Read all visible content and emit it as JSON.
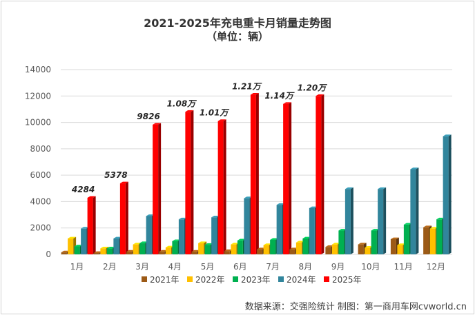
{
  "chart_data": {
    "type": "bar",
    "title": "2021-2025年充电重卡月销量走势图",
    "subtitle": "（单位：辆）",
    "categories": [
      "1月",
      "2月",
      "3月",
      "4月",
      "5月",
      "6月",
      "7月",
      "8月",
      "9月",
      "10月",
      "11月",
      "12月"
    ],
    "ylim": [
      0,
      14000
    ],
    "yticks": [
      "0",
      "2000",
      "4000",
      "6000",
      "8000",
      "10000",
      "12000",
      "14000"
    ],
    "grid": true,
    "legend_position": "bottom",
    "series": [
      {
        "name": "2021年",
        "color": "#9c5a16",
        "values": [
          150,
          100,
          200,
          200,
          200,
          250,
          380,
          380,
          560,
          750,
          1150,
          2050
        ]
      },
      {
        "name": "2022年",
        "color": "#ffc000",
        "values": [
          1200,
          450,
          750,
          520,
          850,
          750,
          700,
          900,
          750,
          500,
          700,
          1950
        ]
      },
      {
        "name": "2023年",
        "color": "#00b050",
        "values": [
          600,
          450,
          850,
          1000,
          720,
          1050,
          1100,
          1200,
          1800,
          1800,
          2250,
          2650
        ]
      },
      {
        "name": "2024年",
        "color": "#31859c",
        "values": [
          1950,
          1200,
          2900,
          2650,
          2800,
          4250,
          3750,
          3500,
          4950,
          4950,
          6450,
          8950
        ]
      },
      {
        "name": "2025年",
        "color": "#ff0000",
        "values": [
          4284,
          5378,
          9826,
          10800,
          10100,
          12100,
          11400,
          12000,
          null,
          null,
          null,
          null
        ]
      }
    ],
    "data_labels": [
      "4284",
      "5378",
      "9826",
      "1.08万",
      "1.01万",
      "1.21万",
      "1.14万",
      "1.20万",
      "",
      "",
      "",
      ""
    ]
  },
  "source": "数据来源：交强险统计 制图：第一商用车网cvworld.cn"
}
